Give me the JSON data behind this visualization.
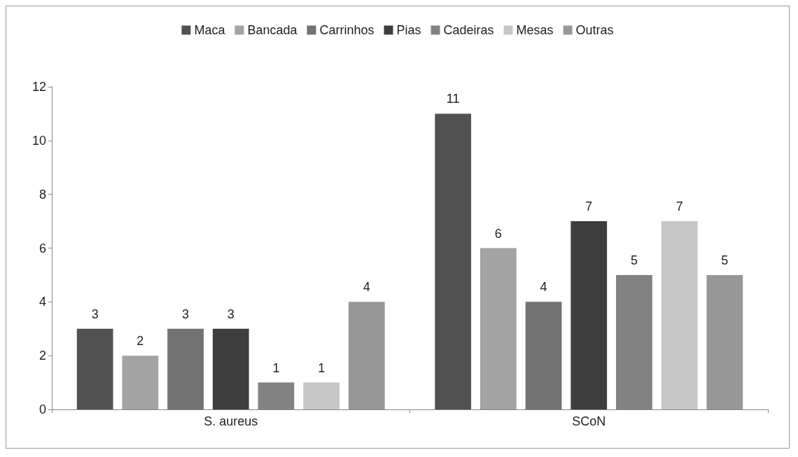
{
  "chart_data": {
    "type": "bar",
    "categories": [
      "S. aureus",
      "SCoN"
    ],
    "series": [
      {
        "name": "Maca",
        "color": "#515151",
        "values": [
          3,
          11
        ]
      },
      {
        "name": "Bancada",
        "color": "#a3a3a3",
        "values": [
          2,
          6
        ]
      },
      {
        "name": "Carrinhos",
        "color": "#727272",
        "values": [
          3,
          4
        ]
      },
      {
        "name": "Pias",
        "color": "#3e3e3e",
        "values": [
          3,
          7
        ]
      },
      {
        "name": "Cadeiras",
        "color": "#828282",
        "values": [
          1,
          5
        ]
      },
      {
        "name": "Mesas",
        "color": "#c6c6c6",
        "values": [
          1,
          7
        ]
      },
      {
        "name": "Outras",
        "color": "#979797",
        "values": [
          4,
          5
        ]
      }
    ],
    "ylim": [
      0,
      12
    ],
    "yticks": [
      0,
      2,
      4,
      6,
      8,
      10,
      12
    ],
    "grid": false,
    "legend": "top",
    "data_labels": true
  }
}
